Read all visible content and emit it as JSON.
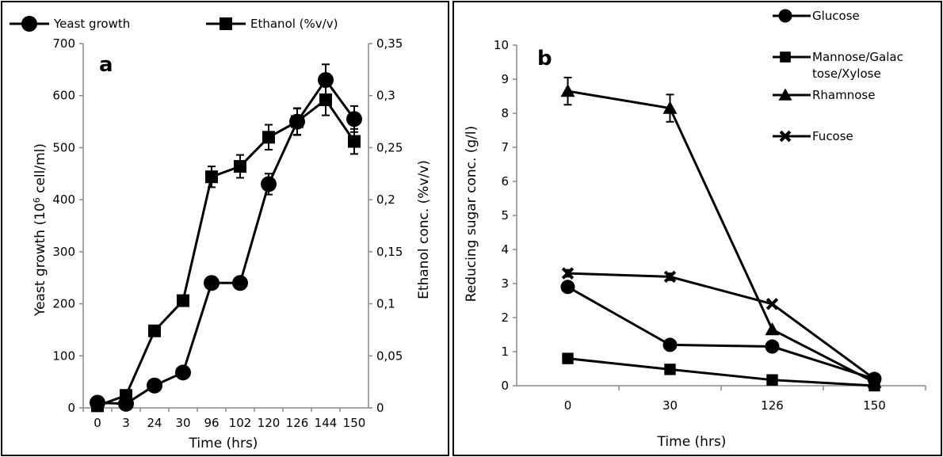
{
  "chart_data": [
    {
      "type": "line",
      "panel_label": "a",
      "categories": [
        "0",
        "3",
        "24",
        "30",
        "96",
        "102",
        "120",
        "126",
        "144",
        "150"
      ],
      "xlabel": "Time (hrs)",
      "ylabel": "Yeast growth  (10",
      "ylabel_sup": "6",
      "ylabel_end": " cell/ml)",
      "y2label": "Ethanol conc. (%v/v)",
      "ylim": [
        0,
        700
      ],
      "yticks": [
        "0",
        "100",
        "200",
        "300",
        "400",
        "500",
        "600",
        "700"
      ],
      "y2lim": [
        0,
        0.35
      ],
      "y2ticks": [
        "0",
        "0,05",
        "0,1",
        "0,15",
        "0,2",
        "0,25",
        "0,3",
        "0,35"
      ],
      "legend": [
        "Yeast growth",
        "Ethanol (%v/v)"
      ],
      "series": [
        {
          "name": "Yeast growth",
          "marker": "circle",
          "axis": "left",
          "values": [
            10,
            8,
            43,
            68,
            240,
            240,
            430,
            550,
            630,
            555
          ],
          "errors": [
            0,
            0,
            0,
            0,
            0,
            0,
            20,
            25,
            30,
            25
          ]
        },
        {
          "name": "Ethanol (%v/v)",
          "marker": "square",
          "axis": "right",
          "values": [
            0.002,
            0.012,
            0.074,
            0.103,
            0.222,
            0.232,
            0.26,
            0.275,
            0.296,
            0.256
          ],
          "errors": [
            0,
            0,
            0,
            0,
            0.01,
            0.011,
            0.012,
            0.013,
            0.015,
            0.012
          ]
        }
      ]
    },
    {
      "type": "line",
      "panel_label": "b",
      "categories": [
        "0",
        "30",
        "126",
        "150"
      ],
      "xlabel": "Time (hrs)",
      "ylabel": "Reducing sugar conc. (g/l)",
      "ylim": [
        0,
        10
      ],
      "yticks": [
        "0",
        "1",
        "2",
        "3",
        "4",
        "5",
        "6",
        "7",
        "8",
        "9",
        "10"
      ],
      "legend": [
        "Glucose",
        "Mannose/Galac tose/Xylose",
        "Rhamnose",
        "Fucose"
      ],
      "legend_lines": [
        [
          "Glucose"
        ],
        [
          "Mannose/Galac",
          "tose/Xylose"
        ],
        [
          "Rhamnose"
        ],
        [
          "Fucose"
        ]
      ],
      "series": [
        {
          "name": "Glucose",
          "marker": "circle",
          "values": [
            2.9,
            1.2,
            1.15,
            0.2
          ],
          "errors": [
            0.15,
            0.1,
            0.1,
            0
          ]
        },
        {
          "name": "Mannose/Galac tose/Xylose",
          "marker": "square",
          "values": [
            0.8,
            0.48,
            0.17,
            0.0
          ],
          "errors": [
            0,
            0,
            0,
            0
          ]
        },
        {
          "name": "Rhamnose",
          "marker": "triangle",
          "values": [
            8.65,
            8.15,
            1.65,
            0.1
          ],
          "errors": [
            0.4,
            0.4,
            0,
            0
          ]
        },
        {
          "name": "Fucose",
          "marker": "x",
          "values": [
            3.3,
            3.2,
            2.4,
            0.2
          ],
          "errors": [
            0.1,
            0.1,
            0,
            0
          ]
        }
      ]
    }
  ]
}
